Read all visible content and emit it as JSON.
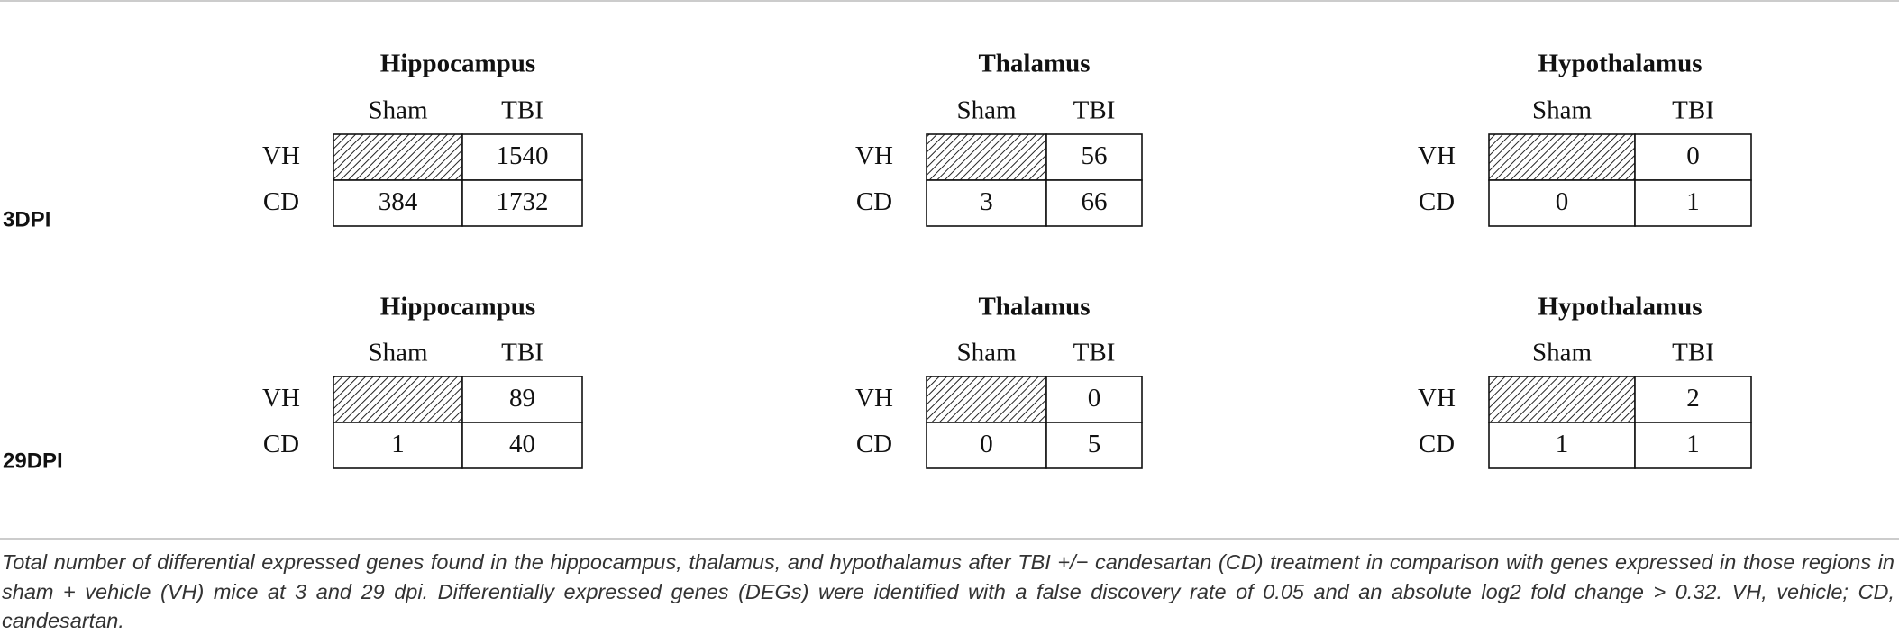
{
  "panels": [
    {
      "label": "3DPI",
      "regions": [
        {
          "title": "Hippocampus",
          "columns": [
            "Sham",
            "TBI"
          ],
          "rows": [
            {
              "label": "VH",
              "cells": [
                null,
                1540
              ]
            },
            {
              "label": "CD",
              "cells": [
                384,
                1732
              ]
            }
          ]
        },
        {
          "title": "Thalamus",
          "columns": [
            "Sham",
            "TBI"
          ],
          "rows": [
            {
              "label": "VH",
              "cells": [
                null,
                56
              ]
            },
            {
              "label": "CD",
              "cells": [
                3,
                66
              ]
            }
          ]
        },
        {
          "title": "Hypothalamus",
          "columns": [
            "Sham",
            "TBI"
          ],
          "rows": [
            {
              "label": "VH",
              "cells": [
                null,
                0
              ]
            },
            {
              "label": "CD",
              "cells": [
                0,
                1
              ]
            }
          ]
        }
      ]
    },
    {
      "label": "29DPI",
      "regions": [
        {
          "title": "Hippocampus",
          "columns": [
            "Sham",
            "TBI"
          ],
          "rows": [
            {
              "label": "VH",
              "cells": [
                null,
                89
              ]
            },
            {
              "label": "CD",
              "cells": [
                1,
                40
              ]
            }
          ]
        },
        {
          "title": "Thalamus",
          "columns": [
            "Sham",
            "TBI"
          ],
          "rows": [
            {
              "label": "VH",
              "cells": [
                null,
                0
              ]
            },
            {
              "label": "CD",
              "cells": [
                0,
                5
              ]
            }
          ]
        },
        {
          "title": "Hypothalamus",
          "columns": [
            "Sham",
            "TBI"
          ],
          "rows": [
            {
              "label": "VH",
              "cells": [
                null,
                2
              ]
            },
            {
              "label": "CD",
              "cells": [
                1,
                1
              ]
            }
          ]
        }
      ]
    }
  ],
  "caption": "Total number of differential expressed genes found in the hippocampus, thalamus, and hypothalamus after TBI +/− candesartan (CD) treatment in comparison with genes expressed in those regions in sham + vehicle (VH) mice at 3 and 29 dpi. Differentially expressed genes (DEGs) were identified with a false discovery rate of 0.05 and an absolute log2 fold change > 0.32. VH, vehicle; CD, candesartan."
}
